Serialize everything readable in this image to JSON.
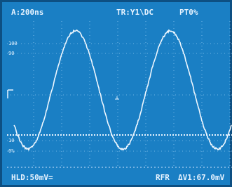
{
  "header": {
    "timebase": "A:200ns",
    "trigger": "TR:Y1\\DC",
    "pretrigger": "PT0%"
  },
  "scale_labels": {
    "top": "100",
    "upper": "90",
    "lower": "10",
    "bottom": "0%"
  },
  "footer": {
    "hold": "HLD:50mV=",
    "mode": "RFR",
    "delta": "ΔV1:67.0mV"
  }
}
